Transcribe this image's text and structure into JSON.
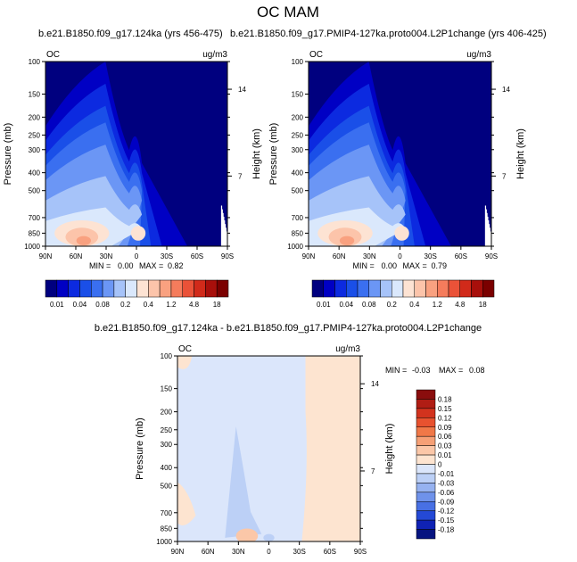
{
  "title": "OC MAM",
  "chart_data": [
    {
      "type": "heatmap",
      "title": "b.e21.B1850.f09_g17.124ka (yrs 456-475)",
      "left_string": "OC",
      "units": "ug/m3",
      "stats": {
        "min_label": "MIN =",
        "min": "0.00",
        "max_label": "MAX =",
        "max": "0.82"
      },
      "xlabel": "",
      "ylabel": "Pressure (mb)",
      "ylabel_right": "Height (km)",
      "xticks": [
        "90N",
        "60N",
        "30N",
        "0",
        "30S",
        "60S",
        "90S"
      ],
      "yticks": [
        100,
        150,
        200,
        250,
        300,
        400,
        500,
        700,
        850,
        1000
      ],
      "yticks_right": [
        "14",
        "7"
      ],
      "ylim": [
        1000,
        100
      ],
      "colorbar_labels": [
        "0.01",
        "0.04",
        "0.08",
        "0.2",
        "0.4",
        "1.2",
        "4.8",
        "18"
      ],
      "colors": [
        "#00007f",
        "#0000c4",
        "#0c2ae0",
        "#1a4fe8",
        "#3a6ff0",
        "#6b96f5",
        "#a6c3f9",
        "#dae8fc",
        "#fde3d3",
        "#fcc4aa",
        "#f9a180",
        "#f57c5c",
        "#ea5238",
        "#d12a1a",
        "#a80f0b",
        "#7b0000"
      ]
    },
    {
      "type": "heatmap",
      "title": "b.e21.B1850.f09_g17.PMIP4-127ka.proto004.L2P1change (yrs 406-425)",
      "left_string": "OC",
      "units": "ug/m3",
      "stats": {
        "min_label": "MIN =",
        "min": "0.00",
        "max_label": "MAX =",
        "max": "0.79"
      },
      "xlabel": "",
      "ylabel": "Pressure (mb)",
      "ylabel_right": "Height (km)",
      "xticks": [
        "90N",
        "60N",
        "30N",
        "0",
        "30S",
        "60S",
        "90S"
      ],
      "yticks": [
        100,
        150,
        200,
        250,
        300,
        400,
        500,
        700,
        850,
        1000
      ],
      "yticks_right": [
        "14",
        "7"
      ],
      "ylim": [
        1000,
        100
      ],
      "colorbar_labels": [
        "0.01",
        "0.04",
        "0.08",
        "0.2",
        "0.4",
        "1.2",
        "4.8",
        "18"
      ],
      "colors": [
        "#00007f",
        "#0000c4",
        "#0c2ae0",
        "#1a4fe8",
        "#3a6ff0",
        "#6b96f5",
        "#a6c3f9",
        "#dae8fc",
        "#fde3d3",
        "#fcc4aa",
        "#f9a180",
        "#f57c5c",
        "#ea5238",
        "#d12a1a",
        "#a80f0b",
        "#7b0000"
      ]
    },
    {
      "type": "heatmap",
      "title": "b.e21.B1850.f09_g17.124ka - b.e21.B1850.f09_g17.PMIP4-127ka.proto004.L2P1change",
      "left_string": "OC",
      "units": "ug/m3",
      "stats": {
        "min_label": "MIN =",
        "min": "-0.03",
        "max_label": "MAX =",
        "max": "0.08"
      },
      "xlabel": "",
      "ylabel": "Pressure (mb)",
      "ylabel_right": "Height (km)",
      "xticks": [
        "90N",
        "60N",
        "30N",
        "0",
        "30S",
        "60S",
        "90S"
      ],
      "yticks": [
        100,
        150,
        200,
        250,
        300,
        400,
        500,
        700,
        850,
        1000
      ],
      "yticks_right": [
        "14",
        "7"
      ],
      "ylim": [
        1000,
        100
      ],
      "colorbar_labels": [
        "0.18",
        "0.15",
        "0.12",
        "0.09",
        "0.06",
        "0.03",
        "0.01",
        "0",
        "-0.01",
        "-0.03",
        "-0.06",
        "-0.09",
        "-0.12",
        "-0.15",
        "-0.18"
      ],
      "colors": [
        "#8a0d0d",
        "#b01d14",
        "#d2331e",
        "#e8522f",
        "#f07848",
        "#f6a076",
        "#fbc7a8",
        "#fde4d0",
        "#dbe6fb",
        "#bcd0f6",
        "#96b2f0",
        "#6f92ea",
        "#4870e4",
        "#2449d6",
        "#0f22b4",
        "#061480"
      ]
    }
  ]
}
